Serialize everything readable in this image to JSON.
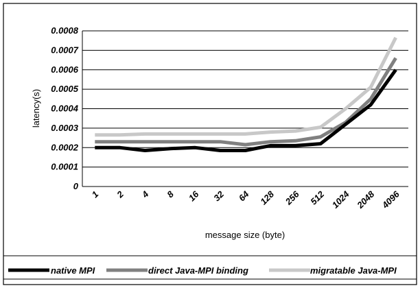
{
  "chart_data": {
    "type": "line",
    "title": "",
    "xlabel": "message size (byte)",
    "ylabel": "latency(s)",
    "categories": [
      "1",
      "2",
      "4",
      "8",
      "16",
      "32",
      "64",
      "128",
      "256",
      "512",
      "1024",
      "2048",
      "4096"
    ],
    "ylim": [
      0,
      0.0008
    ],
    "yticks": [
      "0",
      "0.0001",
      "0.0002",
      "0.0003",
      "0.0004",
      "0.0005",
      "0.0006",
      "0.0007",
      "0.0008"
    ],
    "grid": true,
    "legend_position": "bottom",
    "series": [
      {
        "name": "native MPI",
        "color": "#000000",
        "values": [
          0.0002,
          0.0002,
          0.000185,
          0.000195,
          0.0002,
          0.000185,
          0.000185,
          0.00021,
          0.00021,
          0.00022,
          0.00032,
          0.00042,
          0.0006
        ]
      },
      {
        "name": "direct Java-MPI binding",
        "color": "#808080",
        "values": [
          0.00023,
          0.00023,
          0.00023,
          0.00023,
          0.00023,
          0.00023,
          0.000215,
          0.00023,
          0.000235,
          0.000255,
          0.00033,
          0.00045,
          0.00066
        ]
      },
      {
        "name": "migratable Java-MPI",
        "color": "#c8c8c8",
        "values": [
          0.000265,
          0.000265,
          0.00027,
          0.00027,
          0.00027,
          0.00027,
          0.00027,
          0.00028,
          0.000285,
          0.000305,
          0.0004,
          0.00051,
          0.000765
        ]
      }
    ]
  }
}
